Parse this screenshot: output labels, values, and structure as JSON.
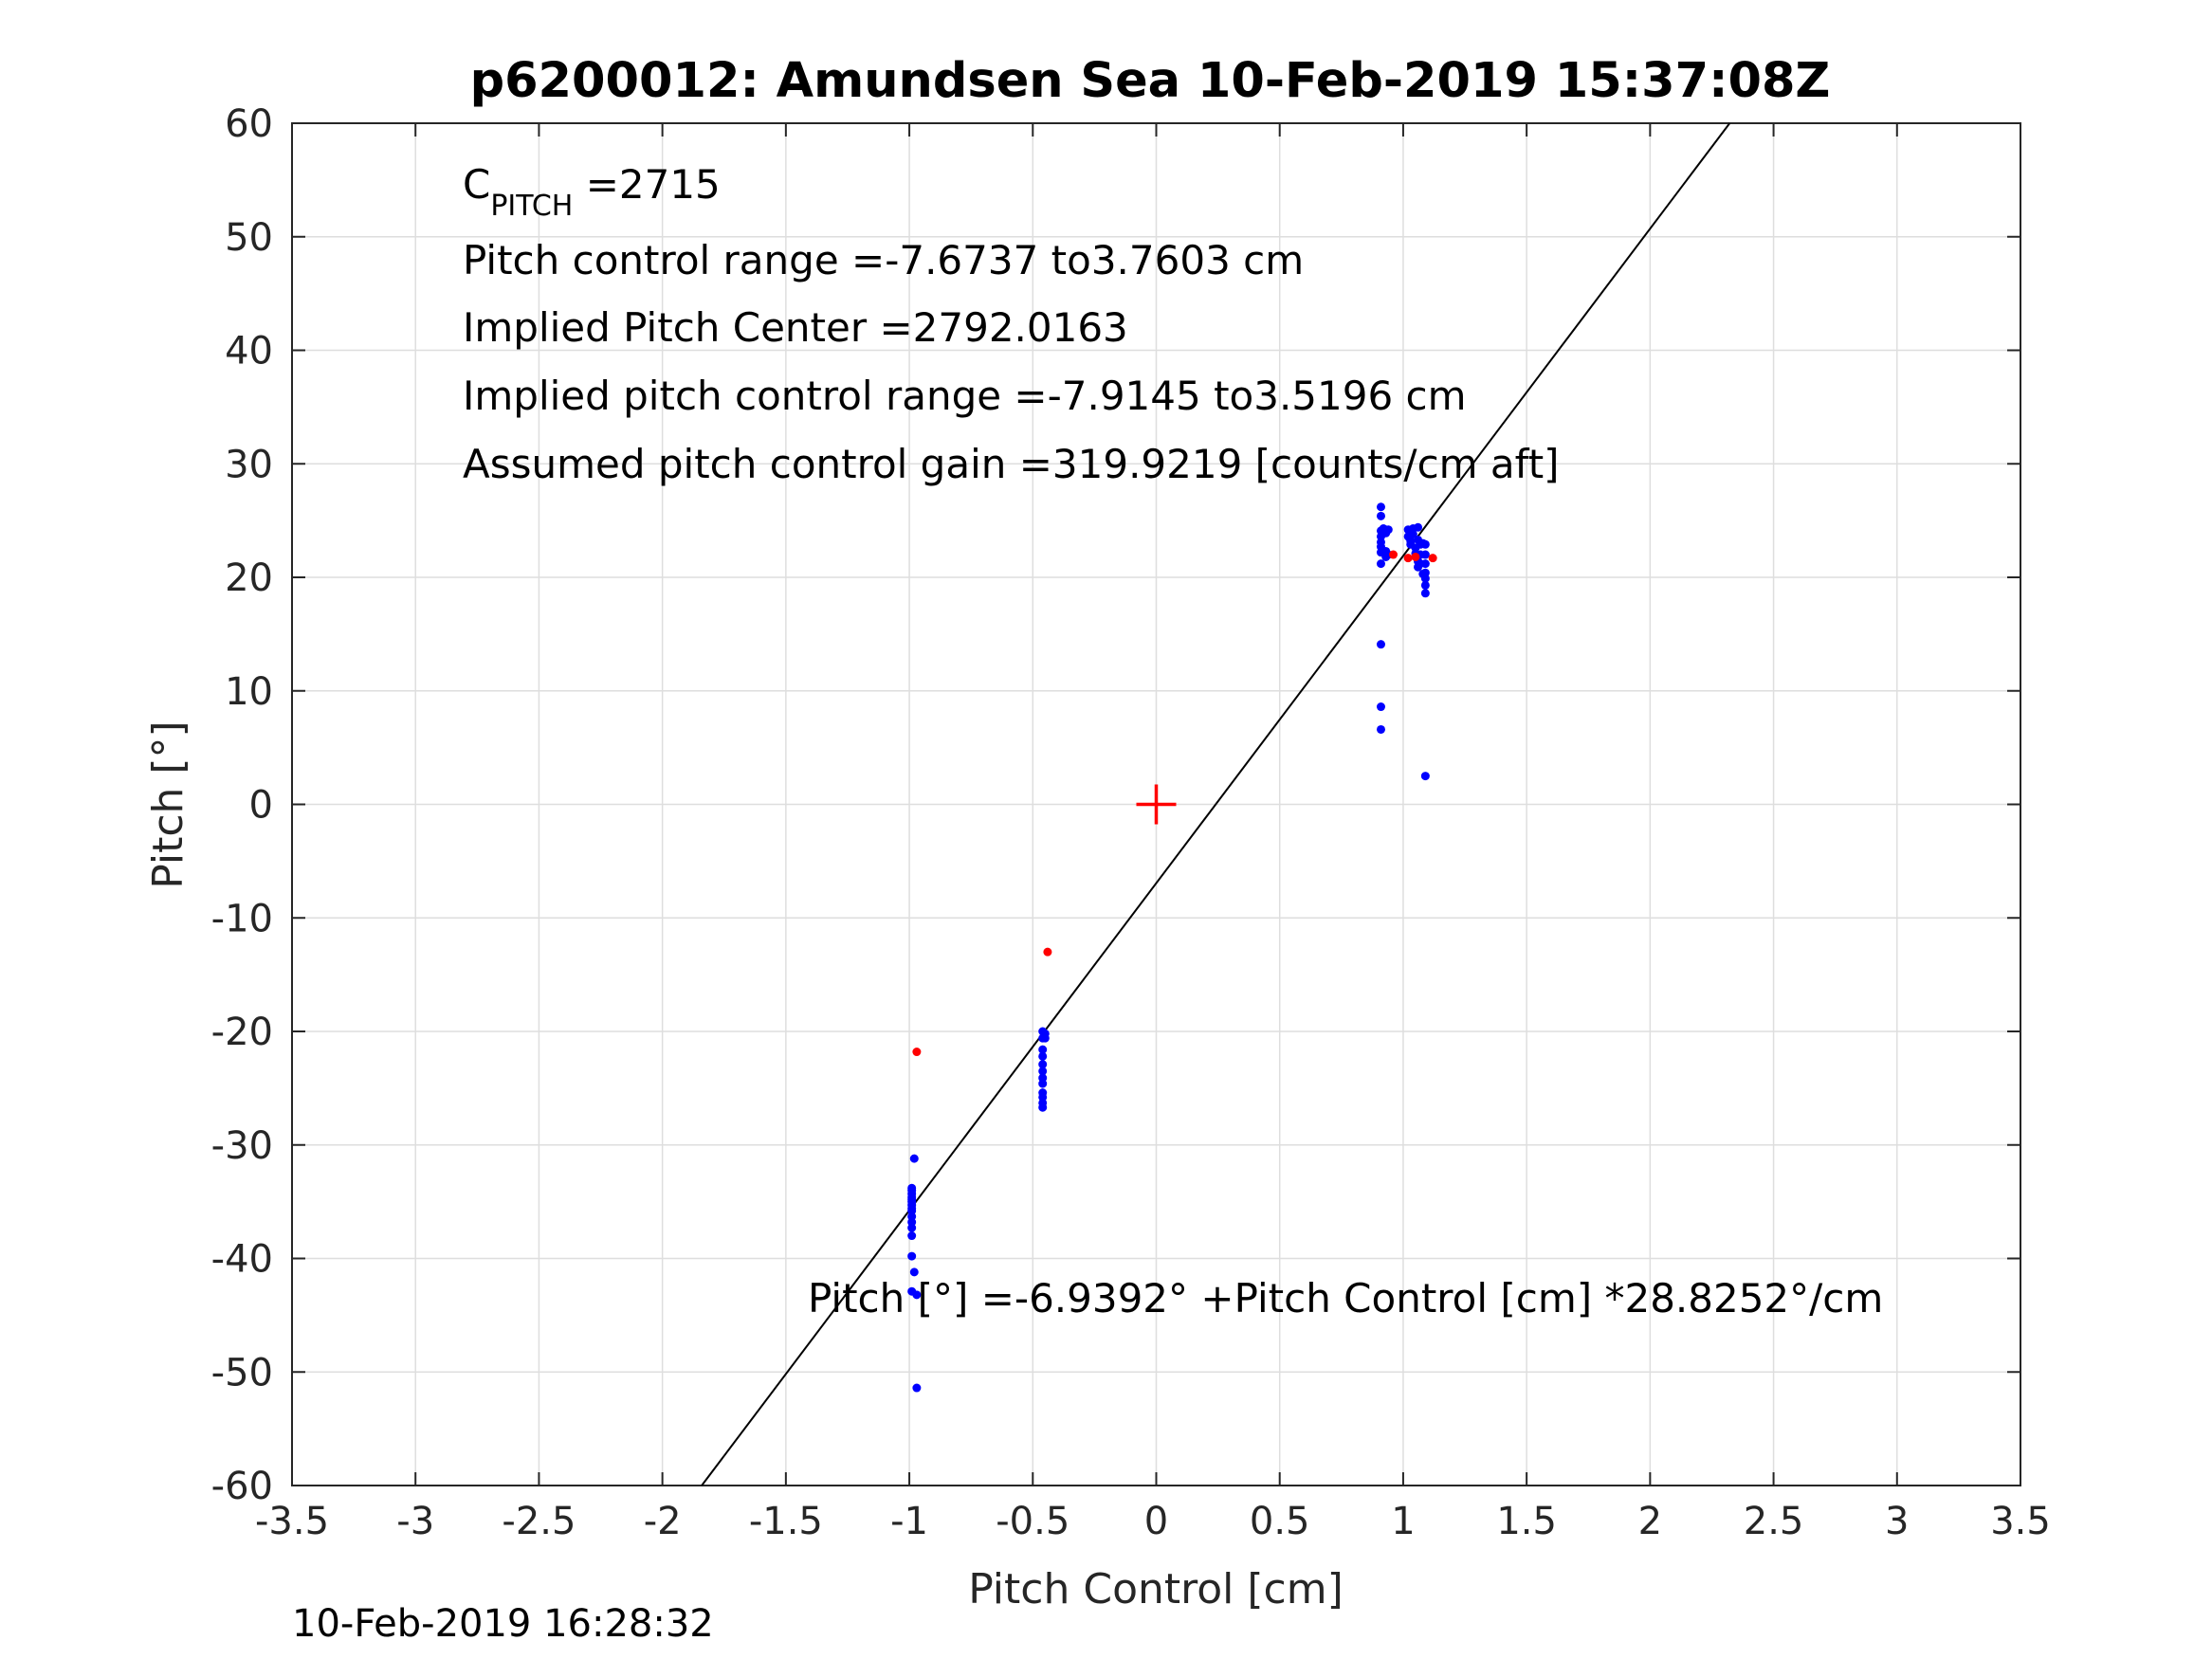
{
  "chart_data": {
    "type": "scatter",
    "title": "p6200012: Amundsen Sea 10-Feb-2019 15:37:08Z",
    "xlabel": "Pitch Control [cm]",
    "ylabel": "Pitch [°]",
    "xlim": [
      -3.5,
      3.5
    ],
    "ylim": [
      -60,
      60
    ],
    "xticks": [
      -3.5,
      -3,
      -2.5,
      -2,
      -1.5,
      -1,
      -0.5,
      0,
      0.5,
      1,
      1.5,
      2,
      2.5,
      3,
      3.5
    ],
    "xtick_labels": [
      "-3.5",
      "-3",
      "-2.5",
      "-2",
      "-1.5",
      "-1",
      "-0.5",
      "0",
      "0.5",
      "1",
      "1.5",
      "2",
      "2.5",
      "3",
      "3.5"
    ],
    "yticks": [
      60,
      50,
      40,
      30,
      20,
      10,
      0,
      -10,
      -20,
      -30,
      -40,
      -50,
      -60
    ],
    "ytick_labels": [
      "60",
      "50",
      "40",
      "30",
      "20",
      "10",
      "0",
      "-10",
      "-20",
      "-30",
      "-40",
      "-50",
      "-60"
    ],
    "grid": true,
    "series": [
      {
        "color": "#0000ff",
        "marker": "dot",
        "x": [
          -0.99,
          -0.99,
          -0.99,
          -0.99,
          -0.99,
          -0.99,
          -0.99,
          -0.99,
          -0.99,
          -0.99,
          -0.99,
          -0.99,
          -0.99,
          -0.99,
          -0.99,
          -0.98,
          -0.98,
          -0.97,
          -0.97,
          -0.46,
          -0.46,
          -0.46,
          -0.46,
          -0.46,
          -0.46,
          -0.46,
          -0.46,
          -0.46,
          -0.46,
          -0.46,
          -0.46,
          -0.45,
          -0.45,
          0.91,
          0.91,
          0.91,
          0.91,
          0.91,
          0.91,
          0.91,
          0.91,
          0.91,
          0.91,
          0.91,
          0.92,
          0.93,
          0.93,
          0.93,
          0.93,
          0.94,
          0.94,
          1.02,
          1.02,
          1.03,
          1.03,
          1.04,
          1.04,
          1.05,
          1.05,
          1.06,
          1.06,
          1.06,
          1.06,
          1.07,
          1.07,
          1.07,
          1.08,
          1.08,
          1.09,
          1.09,
          1.09,
          1.09,
          1.09,
          1.09,
          1.09,
          1.09
        ],
        "y": [
          -33.8,
          -34.3,
          -34.8,
          -35.3,
          -35.8,
          -36.3,
          -36.8,
          -37.3,
          -38.0,
          -39.8,
          -42.9,
          -34.0,
          -34.6,
          -35.0,
          -35.6,
          -31.2,
          -41.2,
          -51.4,
          -43.2,
          -20.0,
          -20.6,
          -21.6,
          -22.2,
          -22.9,
          -23.5,
          -24.1,
          -24.6,
          -25.4,
          -25.8,
          -26.3,
          -26.7,
          -20.6,
          -20.2,
          26.2,
          25.4,
          24.1,
          23.6,
          23.1,
          22.7,
          22.2,
          21.2,
          14.1,
          8.6,
          6.6,
          24.3,
          23.9,
          24.2,
          22.3,
          21.8,
          24.2,
          22.0,
          24.2,
          23.6,
          23.2,
          22.9,
          24.3,
          23.8,
          22.6,
          22.1,
          24.4,
          23.3,
          21.4,
          20.9,
          22.9,
          22.0,
          21.2,
          20.3,
          23.0,
          22.9,
          22.0,
          21.2,
          20.4,
          19.9,
          19.3,
          18.6,
          2.5
        ]
      },
      {
        "color": "#ff0000",
        "marker": "dot",
        "x": [
          -0.97,
          -0.44,
          0.96,
          1.02,
          1.05,
          1.12
        ],
        "y": [
          -21.8,
          -13.0,
          22.0,
          21.7,
          21.8,
          21.7
        ]
      }
    ],
    "center_marker": {
      "x": 0,
      "y": 0,
      "color": "#ff0000",
      "marker": "plus"
    },
    "fit_line": {
      "intercept": -6.9392,
      "slope": 28.8252,
      "color": "#000000"
    },
    "annotations": {
      "c_pitch_label": "C",
      "c_pitch_sub": "PITCH",
      "c_pitch_value": " =2715",
      "line1": "Pitch control range =-7.6737 to3.7603 cm",
      "line2": "Implied Pitch Center =2792.0163",
      "line3": "Implied pitch control range =-7.9145 to3.5196 cm",
      "line4": "Assumed pitch control gain =319.9219 [counts/cm aft]",
      "fit_equation": "Pitch [°] =-6.9392° +Pitch Control [cm] *28.8252°/cm"
    },
    "footer_timestamp": "10-Feb-2019 16:28:32"
  }
}
